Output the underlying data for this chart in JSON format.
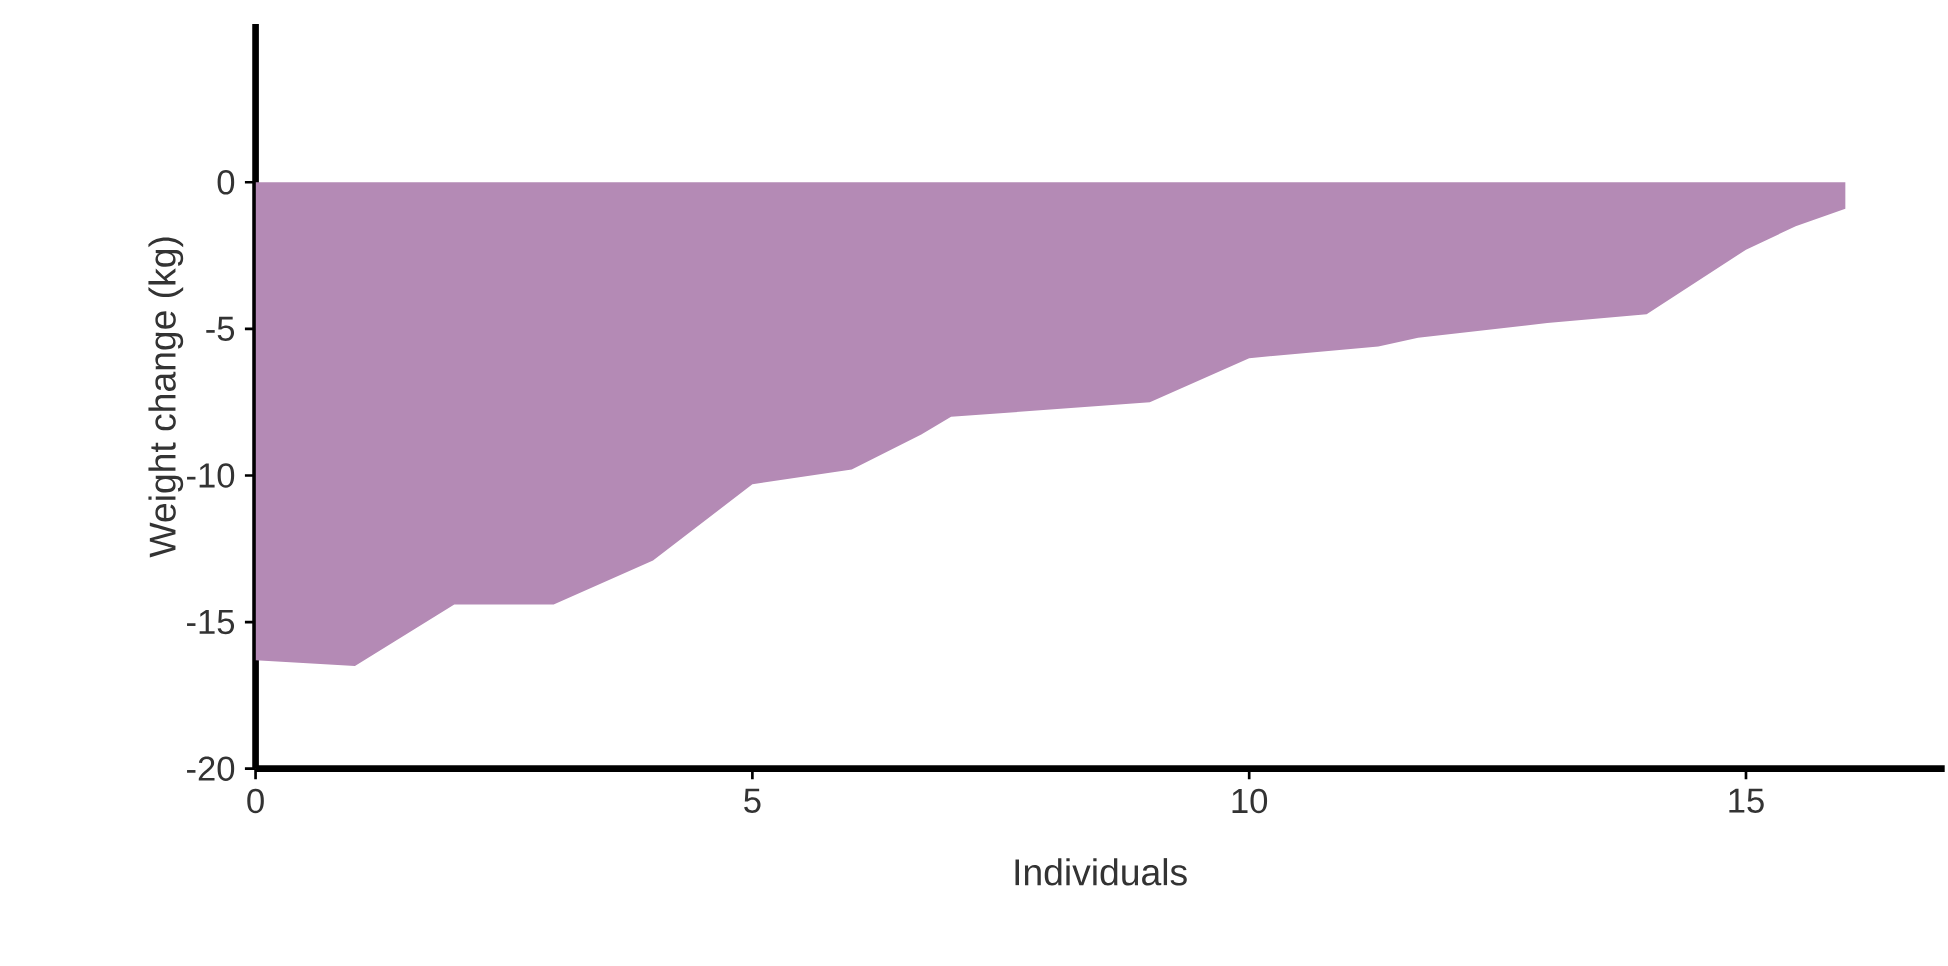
{
  "chart_data": {
    "type": "area",
    "xlabel": "Individuals",
    "ylabel": "Weight change (kg)",
    "series": [
      {
        "color": "#b48ab5",
        "x": [
          0,
          1,
          2,
          3,
          4,
          4.5,
          5,
          6,
          6.7,
          7,
          9,
          10,
          11.3,
          11.7,
          13,
          14,
          15,
          15.5,
          16
        ],
        "values": [
          -16.3,
          -16.5,
          -14.4,
          -14.4,
          -12.9,
          -11.6,
          -10.3,
          -9.8,
          -8.6,
          -8.0,
          -7.5,
          -6.0,
          -5.6,
          -5.3,
          -4.8,
          -4.5,
          -2.3,
          -1.5,
          -0.9
        ]
      }
    ],
    "xlim": [
      0,
      17
    ],
    "ylim": [
      -20,
      5.4
    ],
    "xticks": [
      0,
      5,
      10,
      15
    ],
    "yticks": [
      -20,
      -15,
      -10,
      -5,
      0
    ],
    "grid": false
  }
}
